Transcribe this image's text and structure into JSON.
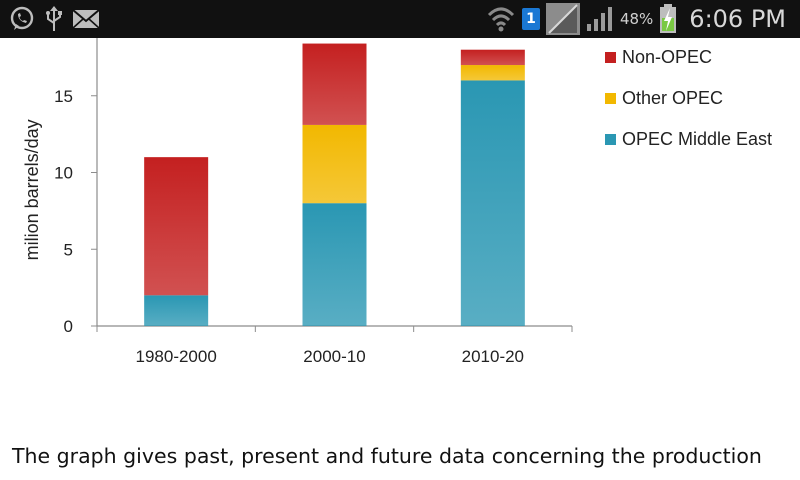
{
  "status_bar": {
    "icons": [
      "whatsapp-icon",
      "usb-icon",
      "email-icon",
      "wifi-icon",
      "notification-badge",
      "no-signal-icon",
      "signal-icon",
      "battery-charging-icon"
    ],
    "notification_count": "1",
    "battery_percent": "48%",
    "time": "6:06 PM"
  },
  "chart_data": {
    "type": "bar",
    "stacked": true,
    "categories": [
      "1980-2000",
      "2000-10",
      "2010-20"
    ],
    "series": [
      {
        "name": "OPEC Middle East",
        "values": [
          2,
          8,
          16
        ],
        "color": "#2a97b3"
      },
      {
        "name": "Other OPEC",
        "values": [
          0,
          5.1,
          1
        ],
        "color": "#f2b800"
      },
      {
        "name": "Non-OPEC",
        "values": [
          9,
          5.3,
          1
        ],
        "color": "#c42020"
      }
    ],
    "legend_order": [
      "Non-OPEC",
      "Other OPEC",
      "OPEC Middle East"
    ],
    "ylabel": "milion barrels/day",
    "yticks": [
      0,
      5,
      10,
      15
    ],
    "ylim": [
      0,
      18.5
    ],
    "grid": false,
    "legend_position": "right"
  },
  "caption": "The graph gives past, present and future data concerning the production"
}
